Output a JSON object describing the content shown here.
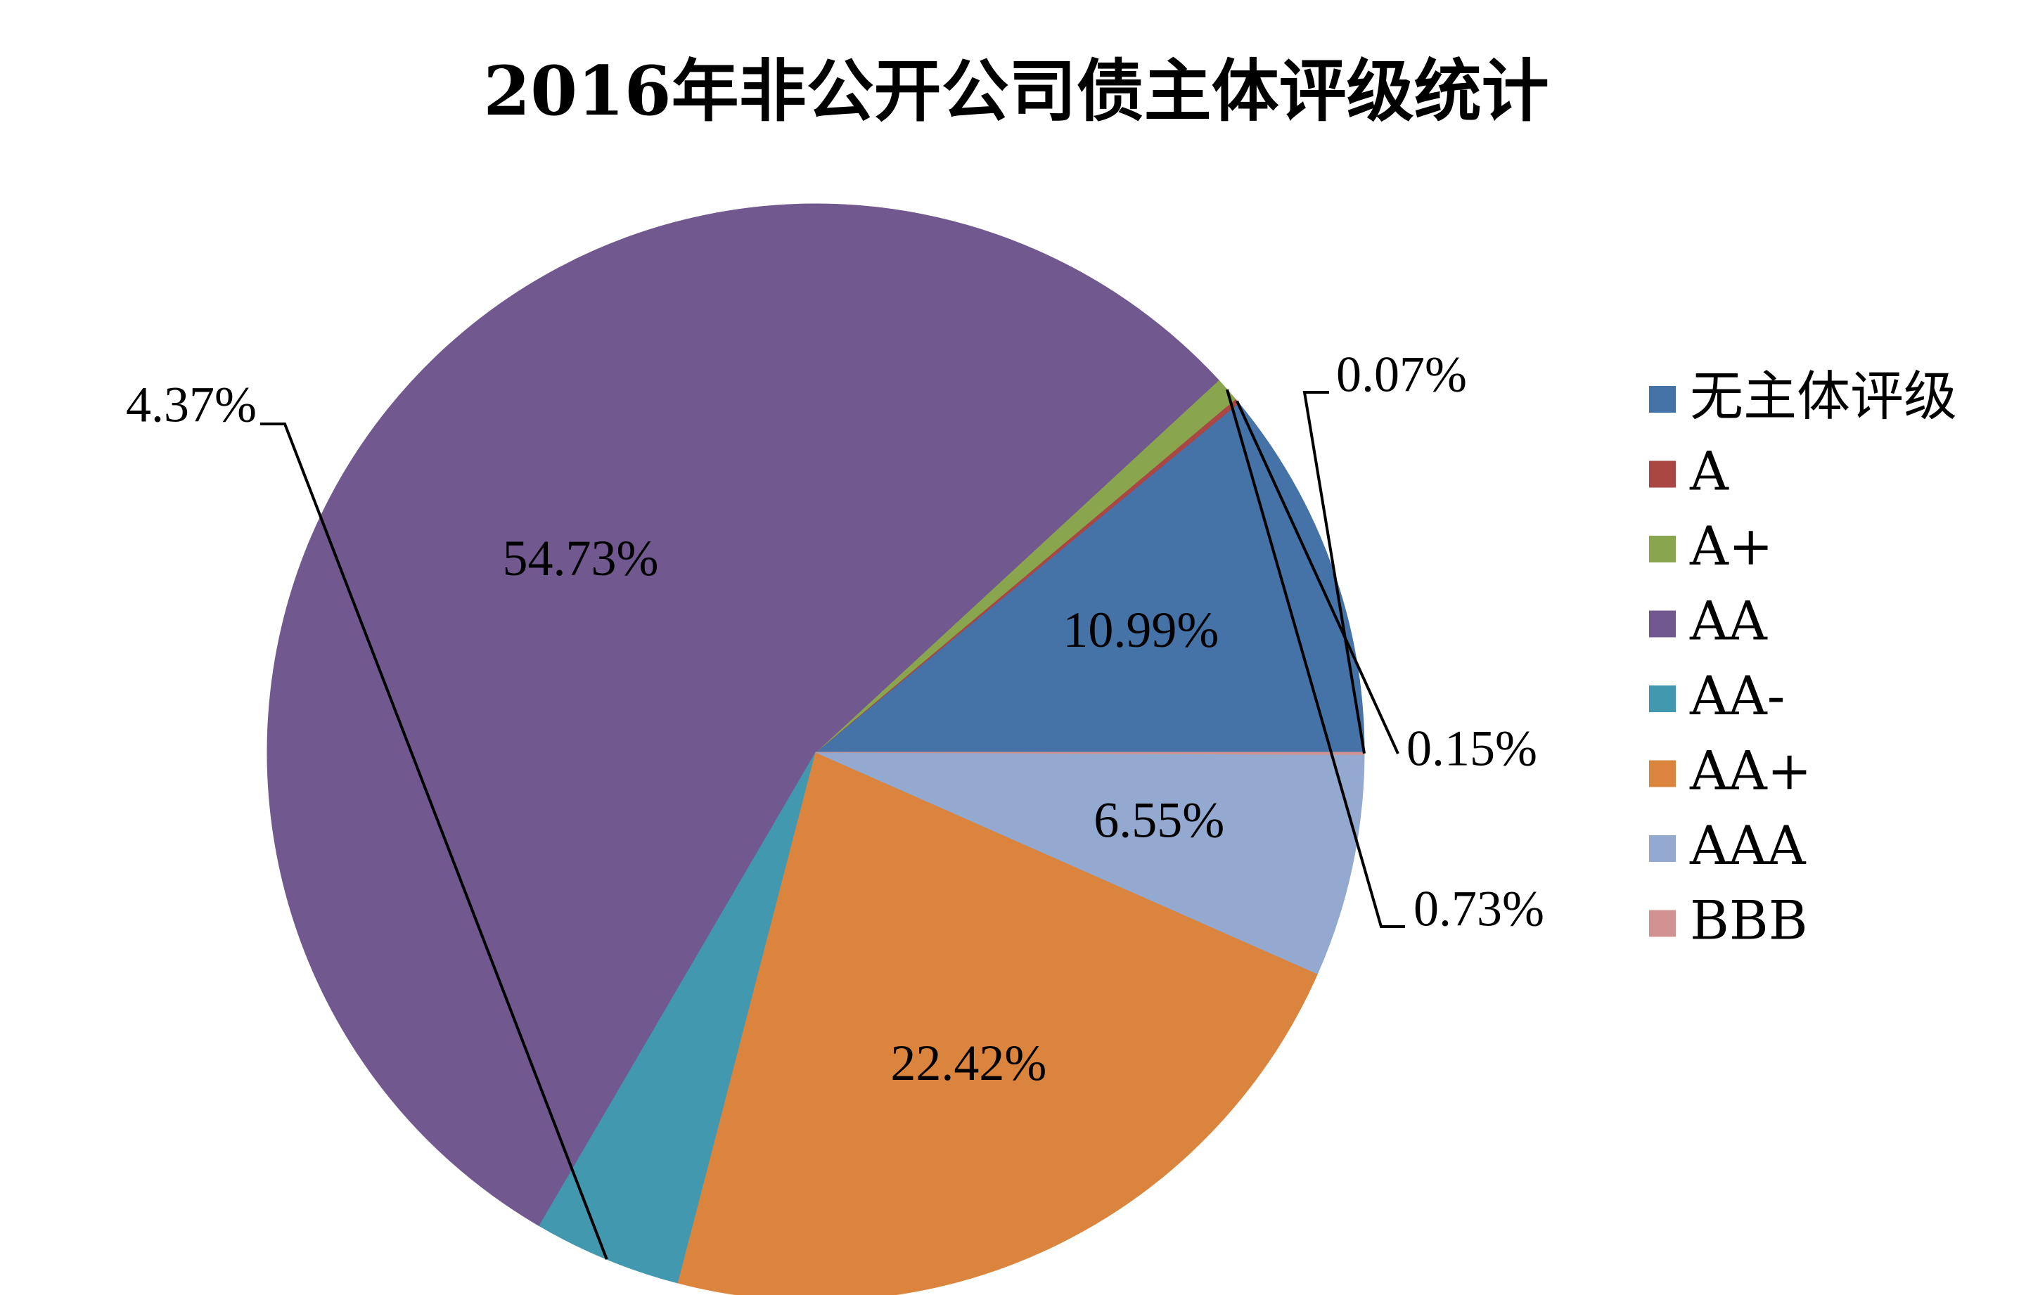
{
  "chart_data": {
    "type": "pie",
    "title": "2016年非公开公司债主体评级统计",
    "categories": [
      "无主体评级",
      "A",
      "A+",
      "AA",
      "AA-",
      "AA+",
      "AAA",
      "BBB"
    ],
    "values": [
      10.99,
      0.15,
      0.73,
      54.73,
      4.37,
      22.42,
      6.55,
      0.07
    ],
    "data_labels": [
      "10.99%",
      "0.15%",
      "0.73%",
      "54.73%",
      "4.37%",
      "22.42%",
      "6.55%",
      "0.07%"
    ],
    "unit": "%",
    "legend_position": "right",
    "start": "3 o'clock",
    "direction": "counterclockwise",
    "colors": [
      "#4572A7",
      "#AA4643",
      "#89A54E",
      "#71588F",
      "#4198AF",
      "#DB843D",
      "#93A9CF",
      "#D19392"
    ]
  }
}
